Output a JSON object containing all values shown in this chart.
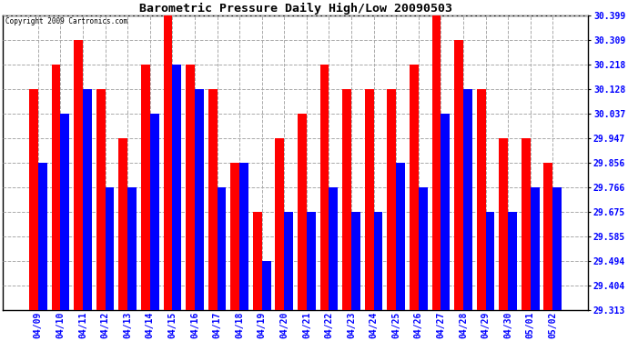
{
  "title": "Barometric Pressure Daily High/Low 20090503",
  "copyright": "Copyright 2009 Cartronics.com",
  "dates": [
    "04/09",
    "04/10",
    "04/11",
    "04/12",
    "04/13",
    "04/14",
    "04/15",
    "04/16",
    "04/17",
    "04/18",
    "04/19",
    "04/20",
    "04/21",
    "04/22",
    "04/23",
    "04/24",
    "04/25",
    "04/26",
    "04/27",
    "04/28",
    "04/29",
    "04/30",
    "05/01",
    "05/02"
  ],
  "highs": [
    30.128,
    30.218,
    30.309,
    30.128,
    29.947,
    30.218,
    30.399,
    30.218,
    30.128,
    29.856,
    29.675,
    29.947,
    30.037,
    30.218,
    30.128,
    30.128,
    30.128,
    30.218,
    30.399,
    30.309,
    30.128,
    29.947,
    29.947,
    29.856
  ],
  "lows": [
    29.856,
    30.037,
    30.128,
    29.766,
    29.766,
    30.037,
    30.218,
    30.128,
    29.766,
    29.856,
    29.494,
    29.675,
    29.675,
    29.766,
    29.675,
    29.675,
    29.856,
    29.766,
    30.037,
    30.128,
    29.675,
    29.675,
    29.766,
    29.766
  ],
  "high_color": "#FF0000",
  "low_color": "#0000FF",
  "bg_color": "#FFFFFF",
  "grid_color": "#AAAAAA",
  "yticks": [
    29.313,
    29.404,
    29.494,
    29.585,
    29.675,
    29.766,
    29.856,
    29.947,
    30.037,
    30.128,
    30.218,
    30.309,
    30.399
  ],
  "ymin": 29.313,
  "ymax": 30.399,
  "bar_width": 0.4
}
